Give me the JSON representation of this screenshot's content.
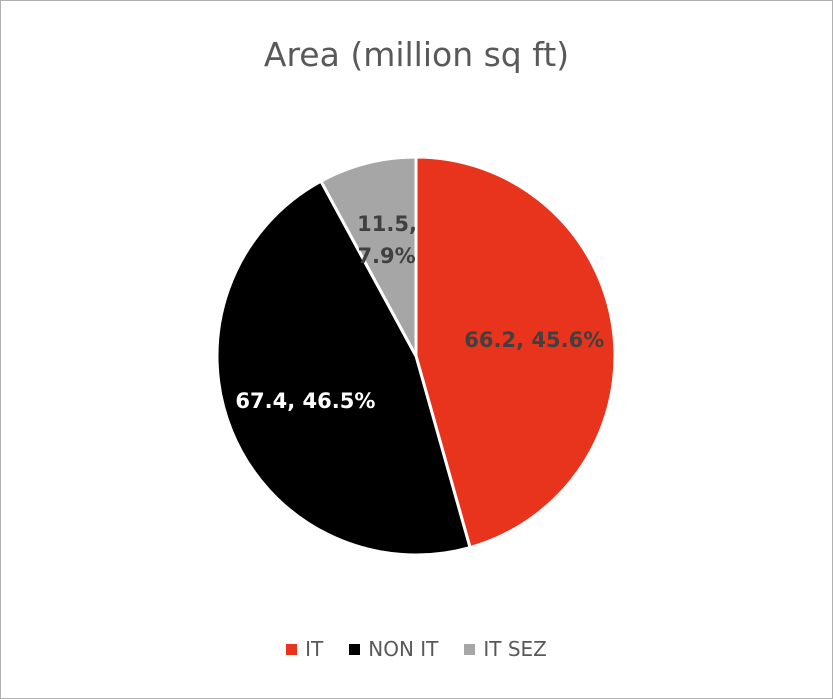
{
  "chart_data": {
    "type": "pie",
    "title": "Area (million sq ft)",
    "categories": [
      "IT",
      "NON IT",
      "IT SEZ"
    ],
    "values": [
      66.2,
      67.4,
      11.5
    ],
    "value_labels": [
      "66.2, 45.6%",
      "67.4, 46.5%",
      "11.5, 7.9%"
    ],
    "colors": [
      "#e8341c",
      "#000000",
      "#a6a6a6"
    ],
    "legend": "bottom"
  }
}
